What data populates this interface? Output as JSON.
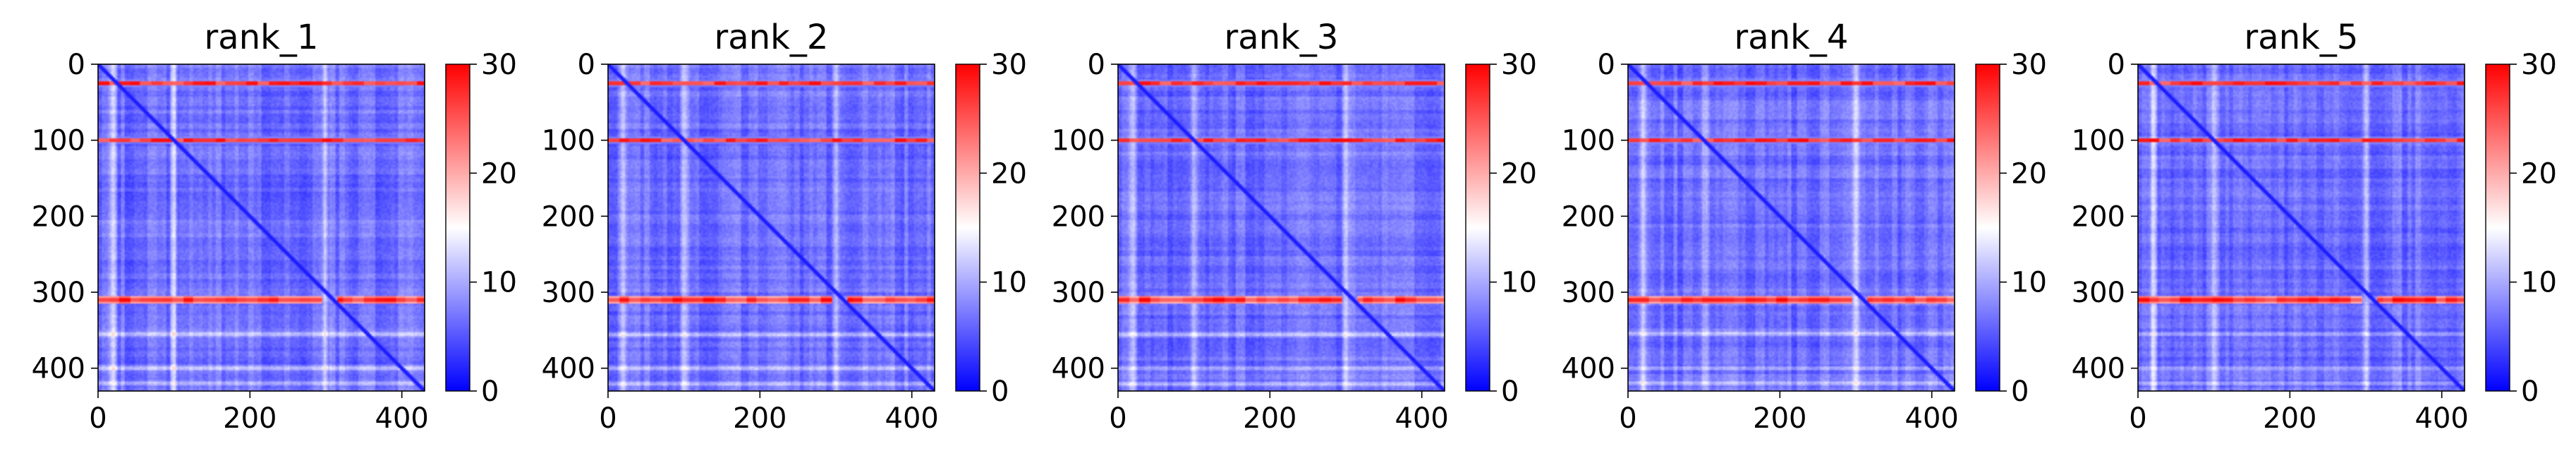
{
  "chart_data": [
    {
      "type": "heatmap",
      "title": "rank_1",
      "x_ticks": [
        "0",
        "200",
        "400"
      ],
      "y_ticks": [
        "0",
        "100",
        "200",
        "300",
        "400"
      ],
      "colorbar_ticks": [
        "0",
        "10",
        "20",
        "30"
      ],
      "xlim": [
        0,
        430
      ],
      "ylim": [
        430,
        0
      ],
      "color_range": [
        0,
        30
      ],
      "colormap": "bwr",
      "colors": {
        "low": "#0000ff",
        "mid": "#ffffff",
        "high": "#ff0000"
      },
      "hot_rows": [
        25,
        100,
        310
      ],
      "light_rows": [
        355,
        400,
        420
      ],
      "light_cols": [
        20,
        100,
        300
      ],
      "diagonal_break": 310
    },
    {
      "type": "heatmap",
      "title": "rank_2",
      "x_ticks": [
        "0",
        "200",
        "400"
      ],
      "y_ticks": [
        "0",
        "100",
        "200",
        "300",
        "400"
      ],
      "colorbar_ticks": [
        "0",
        "10",
        "20",
        "30"
      ],
      "xlim": [
        0,
        430
      ],
      "ylim": [
        430,
        0
      ],
      "color_range": [
        0,
        30
      ],
      "colormap": "bwr",
      "colors": {
        "low": "#0000ff",
        "mid": "#ffffff",
        "high": "#ff0000"
      },
      "hot_rows": [
        25,
        100,
        310
      ],
      "light_rows": [
        355,
        400,
        420
      ],
      "light_cols": [
        20,
        100,
        300
      ],
      "diagonal_break": 310
    },
    {
      "type": "heatmap",
      "title": "rank_3",
      "x_ticks": [
        "0",
        "200",
        "400"
      ],
      "y_ticks": [
        "0",
        "100",
        "200",
        "300",
        "400"
      ],
      "colorbar_ticks": [
        "0",
        "10",
        "20",
        "30"
      ],
      "xlim": [
        0,
        430
      ],
      "ylim": [
        430,
        0
      ],
      "color_range": [
        0,
        30
      ],
      "colormap": "bwr",
      "colors": {
        "low": "#0000ff",
        "mid": "#ffffff",
        "high": "#ff0000"
      },
      "hot_rows": [
        25,
        100,
        310
      ],
      "light_rows": [
        355,
        400,
        420
      ],
      "light_cols": [
        20,
        100,
        300
      ],
      "diagonal_break": 310
    },
    {
      "type": "heatmap",
      "title": "rank_4",
      "x_ticks": [
        "0",
        "200",
        "400"
      ],
      "y_ticks": [
        "0",
        "100",
        "200",
        "300",
        "400"
      ],
      "colorbar_ticks": [
        "0",
        "10",
        "20",
        "30"
      ],
      "xlim": [
        0,
        430
      ],
      "ylim": [
        430,
        0
      ],
      "color_range": [
        0,
        30
      ],
      "colormap": "bwr",
      "colors": {
        "low": "#0000ff",
        "mid": "#ffffff",
        "high": "#ff0000"
      },
      "hot_rows": [
        25,
        100,
        310
      ],
      "light_rows": [
        355,
        400,
        420
      ],
      "light_cols": [
        20,
        100,
        300
      ],
      "diagonal_break": 310
    },
    {
      "type": "heatmap",
      "title": "rank_5",
      "x_ticks": [
        "0",
        "200",
        "400"
      ],
      "y_ticks": [
        "0",
        "100",
        "200",
        "300",
        "400"
      ],
      "colorbar_ticks": [
        "0",
        "10",
        "20",
        "30"
      ],
      "xlim": [
        0,
        430
      ],
      "ylim": [
        430,
        0
      ],
      "color_range": [
        0,
        30
      ],
      "colormap": "bwr",
      "colors": {
        "low": "#0000ff",
        "mid": "#ffffff",
        "high": "#ff0000"
      },
      "hot_rows": [
        25,
        100,
        310
      ],
      "light_rows": [
        355,
        400,
        420
      ],
      "light_cols": [
        20,
        100,
        300
      ],
      "diagonal_break": 310
    }
  ]
}
